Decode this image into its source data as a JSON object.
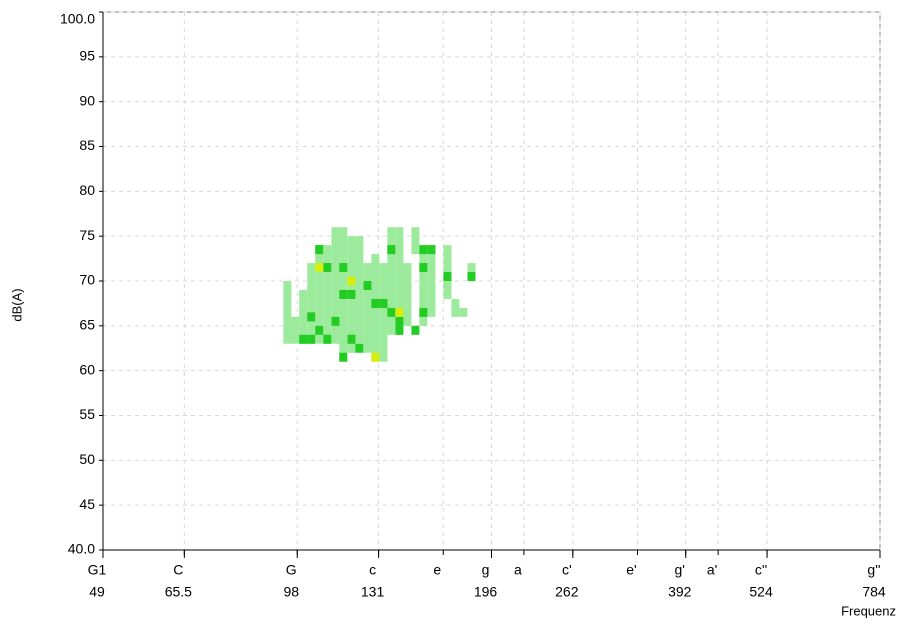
{
  "chart_data": {
    "type": "range_scatter",
    "y_label": "dB(A)",
    "x_label": "Frequenz",
    "x_scale": "log",
    "xlim": [
      49,
      784
    ],
    "ylim": [
      40,
      100
    ],
    "yticks": [
      {
        "value": 100,
        "label": "100.0"
      },
      95,
      90,
      85,
      80,
      75,
      70,
      65,
      60,
      55,
      50,
      45,
      {
        "value": 40,
        "label": "40.0"
      }
    ],
    "xticks": [
      49,
      65.5,
      98,
      131,
      196,
      262,
      392,
      524,
      784
    ],
    "note_ticks": [
      {
        "value": 49,
        "label": "G1"
      },
      {
        "value": 65.5,
        "label": "C"
      },
      {
        "value": 98,
        "label": "G"
      },
      {
        "value": 131,
        "label": "c"
      },
      {
        "value": 165,
        "label": "e"
      },
      {
        "value": 196,
        "label": "g"
      },
      {
        "value": 220,
        "label": "a"
      },
      {
        "value": 262,
        "label": "c'"
      },
      {
        "value": 330,
        "label": "e'"
      },
      {
        "value": 392,
        "label": "g'"
      },
      {
        "value": 440,
        "label": "a'"
      },
      {
        "value": 524,
        "label": "c''"
      },
      {
        "value": 784,
        "label": "g''"
      }
    ],
    "grid": true,
    "range_color": "#9ceb9c",
    "ranges": {
      "x": [
        94.6,
        97.3,
        100.1,
        103.0,
        106.0,
        109.1,
        112.3,
        115.5,
        118.9,
        122.3,
        125.9,
        129.5,
        133.3,
        137.1,
        141.1,
        145.2,
        149.4,
        153.7,
        158.2,
        167.5,
        172.3,
        177.3,
        182.5
      ],
      "low": [
        63,
        63,
        63,
        63,
        63,
        63,
        63,
        61,
        62,
        63,
        62,
        61,
        61,
        64,
        64,
        65,
        73,
        65,
        66,
        68,
        66,
        66,
        70
      ],
      "high": [
        70,
        66,
        69,
        72,
        74,
        74,
        76,
        76,
        75,
        75,
        72,
        73,
        72,
        76,
        76,
        72,
        76,
        73,
        74,
        74,
        68,
        67,
        72
      ]
    },
    "series": [
      {
        "color": "#22cc22",
        "x": [
          106.0,
          103.0,
          100.1,
          103.0,
          109.1,
          115.5,
          118.9,
          115.5,
          112.3,
          109.1,
          118.9,
          122.3,
          115.5,
          129.5,
          133.3,
          137.1,
          141.1,
          141.1,
          137.1,
          149.4,
          153.7,
          153.7,
          158.2,
          153.7,
          182.5,
          167.5,
          125.9,
          106.0
        ],
        "values": [
          73.5,
          66,
          63.5,
          63.5,
          71.5,
          71.5,
          68.5,
          68.5,
          65.5,
          63.5,
          63.5,
          62.5,
          61.5,
          67.5,
          67.5,
          66.5,
          64.5,
          65.5,
          73.5,
          64.5,
          73.5,
          71.5,
          73.5,
          66.5,
          70.5,
          70.5,
          69.5,
          64.5
        ]
      },
      {
        "color": "#d4ee10",
        "x": [
          106.0,
          118.9,
          129.5,
          141.1
        ],
        "values": [
          71.5,
          70,
          61.5,
          66.5
        ]
      }
    ]
  }
}
